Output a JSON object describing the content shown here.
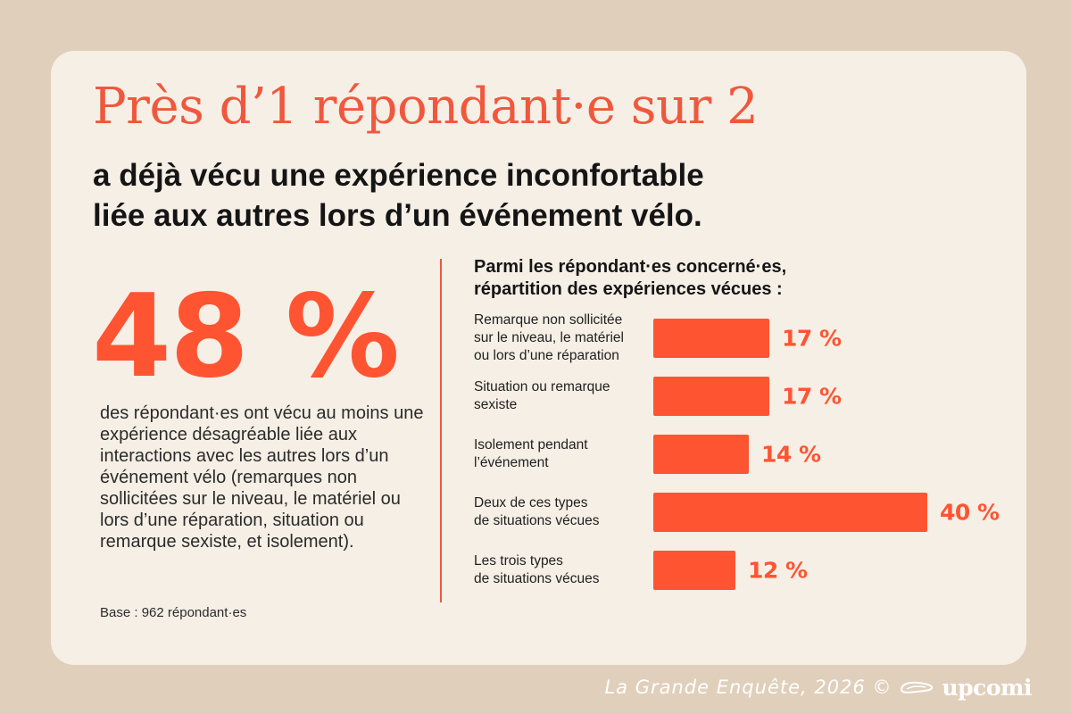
{
  "headline": "Près d’1 répondant·e sur 2",
  "subheadline": [
    "a déjà vécu une expérience inconfortable",
    "liée aux autres lors d’un événement vélo."
  ],
  "key_stat": {
    "value": "48 %",
    "description": "des répondant·es ont vécu au moins une expérience désagréable liée aux interactions avec les autres lors d’un événement vélo (remarques non sollicitées sur le niveau, le matériel ou lors d’une réparation, situation ou remarque sexiste, et isolement)."
  },
  "base_note": "Base : 962 répondant·es",
  "chart_title": [
    "Parmi les répondant·es concerné·es,",
    "répartition des expériences vécues :"
  ],
  "chart_data": {
    "type": "bar",
    "orientation": "horizontal",
    "categories": [
      "Remarque non sollicitée\nsur le niveau, le matériel\nou lors d’une réparation",
      "Situation ou remarque\nsexiste",
      "Isolement pendant\nl’événement",
      "Deux de ces types\nde situations vécues",
      "Les trois types\nde situations vécues"
    ],
    "values": [
      17,
      17,
      14,
      40,
      12
    ],
    "value_labels": [
      "17 %",
      "17 %",
      "14 %",
      "40 %",
      "12 %"
    ],
    "unit": "%",
    "xlim": [
      0,
      40
    ],
    "grid": false,
    "color": "#ff5432"
  },
  "footer": {
    "credit": "La Grande Enquête, 2026 ©",
    "brand": "upcomi",
    "brand_icon": "bicycle-saddle-icon"
  },
  "colors": {
    "background": "#e0cfba",
    "card": "#f6efe6",
    "accent": "#ff5432",
    "headline": "#f0583d",
    "text": "#151515"
  }
}
